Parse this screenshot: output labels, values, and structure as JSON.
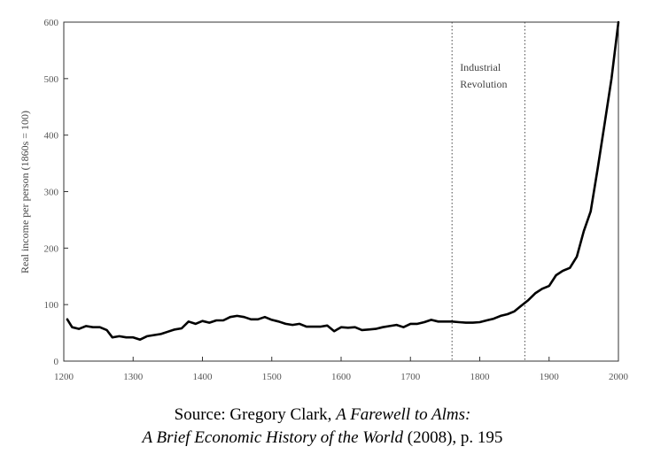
{
  "chart_data": {
    "type": "line",
    "title": "",
    "xlabel": "",
    "ylabel": "Real income per person (1860s = 100)",
    "xlim": [
      1200,
      2000
    ],
    "ylim": [
      0,
      600
    ],
    "x_ticks": [
      1200,
      1300,
      1400,
      1500,
      1600,
      1700,
      1800,
      1900,
      2000
    ],
    "y_ticks": [
      0,
      100,
      200,
      300,
      400,
      500,
      600
    ],
    "grid": false,
    "legend": "none",
    "line_color": "#000000",
    "reference_lines": [
      {
        "x": 1760,
        "style": "dotted"
      },
      {
        "x": 1865,
        "style": "dotted"
      }
    ],
    "annotations": [
      {
        "lines": [
          "Industrial",
          "Revolution"
        ]
      }
    ],
    "series": [
      {
        "x": [
          1205,
          1212,
          1222,
          1232,
          1242,
          1252,
          1262,
          1270,
          1280,
          1290,
          1300,
          1310,
          1320,
          1330,
          1340,
          1350,
          1360,
          1370,
          1380,
          1390,
          1400,
          1410,
          1420,
          1430,
          1440,
          1450,
          1460,
          1470,
          1480,
          1490,
          1500,
          1510,
          1520,
          1530,
          1540,
          1550,
          1560,
          1570,
          1580,
          1590,
          1600,
          1610,
          1620,
          1630,
          1640,
          1650,
          1660,
          1670,
          1680,
          1690,
          1700,
          1710,
          1720,
          1730,
          1740,
          1750,
          1760,
          1770,
          1780,
          1790,
          1800,
          1810,
          1820,
          1830,
          1840,
          1850,
          1860,
          1870,
          1880,
          1890,
          1900,
          1910,
          1920,
          1930,
          1940,
          1950,
          1960,
          1970,
          1980,
          1990,
          2000
        ],
        "values": [
          74,
          60,
          57,
          62,
          60,
          60,
          55,
          42,
          44,
          42,
          42,
          38,
          44,
          46,
          48,
          52,
          56,
          58,
          70,
          66,
          71,
          68,
          72,
          72,
          78,
          80,
          78,
          74,
          74,
          78,
          73,
          70,
          66,
          64,
          66,
          61,
          61,
          61,
          63,
          53,
          60,
          59,
          60,
          55,
          56,
          57,
          60,
          62,
          64,
          60,
          66,
          66,
          69,
          73,
          70,
          70,
          70,
          69,
          68,
          68,
          69,
          72,
          75,
          80,
          83,
          88,
          98,
          108,
          120,
          128,
          133,
          152,
          160,
          165,
          185,
          230,
          265,
          340,
          420,
          500,
          600
        ]
      }
    ]
  },
  "caption": {
    "line1_prefix": "Source: Gregory Clark, ",
    "line1_title": "A Farewell to Alms:",
    "line2_title": "A Brief Economic History of the World",
    "line2_suffix": " (2008), p. 195"
  }
}
